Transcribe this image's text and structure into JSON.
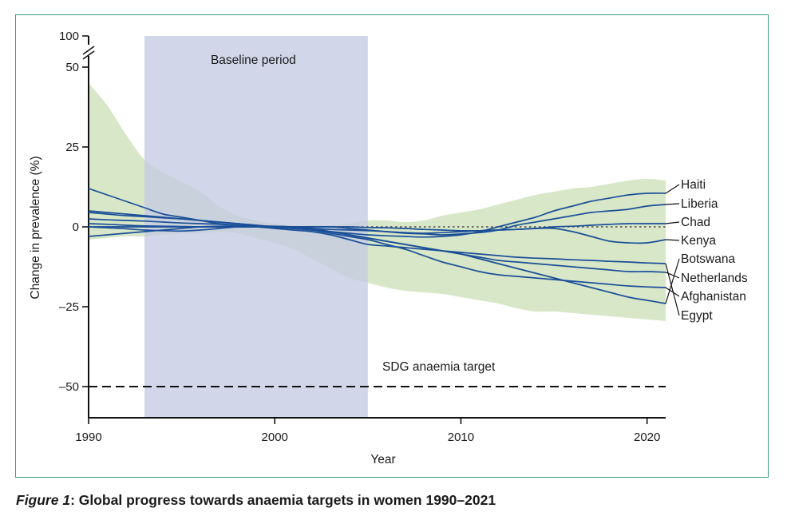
{
  "caption": {
    "figure_label": "Figure 1",
    "separator": ":",
    "title": " Global progress towards anaemia targets in women 1990–2021"
  },
  "colors": {
    "line": "#1a4f98",
    "band": "#d8e7c8",
    "baseline_shade": "#c4cbe3",
    "frame": "#3f9a82"
  },
  "chart_data": {
    "type": "line",
    "title": "Global progress towards anaemia targets in women 1990–2021",
    "xlabel": "Year",
    "ylabel": "Change in prevalence (%)",
    "xlim": [
      1990,
      2021
    ],
    "ylim": [
      -60,
      50
    ],
    "y_break_top_label": "100",
    "x_ticks": [
      1990,
      2000,
      2010,
      2020
    ],
    "x_tick_labels": [
      "1990",
      "2000",
      "2010",
      "2020"
    ],
    "y_ticks": [
      50,
      25,
      0,
      -25,
      -50
    ],
    "y_tick_labels": [
      "50",
      "25",
      "0",
      "–25",
      "–50"
    ],
    "baseline_period": {
      "label": "Baseline period",
      "start": 1993,
      "end": 2005
    },
    "target_line": {
      "label": "SDG anaemia target",
      "value": -50
    },
    "zero_reference": 0,
    "uncertainty_band": {
      "x": [
        1990,
        1991,
        1992,
        1993,
        1994,
        1995,
        1996,
        1997,
        1998,
        1999,
        2000,
        2001,
        2002,
        2003,
        2004,
        2005,
        2006,
        2007,
        2008,
        2009,
        2010,
        2011,
        2012,
        2013,
        2014,
        2015,
        2016,
        2017,
        2018,
        2019,
        2020,
        2021
      ],
      "upper": [
        45,
        38,
        29,
        21,
        17,
        14,
        11,
        6.5,
        3.5,
        2.0,
        1.0,
        0.5,
        0.5,
        0.5,
        1.0,
        2.0,
        2.0,
        1.5,
        2.0,
        3.5,
        4.5,
        5.5,
        7.0,
        8.5,
        10,
        11,
        12,
        12.5,
        13.5,
        14.5,
        15,
        14.5
      ],
      "lower": [
        -4,
        -3.5,
        -3,
        -3,
        -2.5,
        -2.0,
        -2.0,
        -1.5,
        -2.0,
        -3.5,
        -5,
        -7,
        -10,
        -13,
        -16,
        -17.5,
        -19,
        -20,
        -20.5,
        -21,
        -22,
        -23,
        -24,
        -25.5,
        -26.5,
        -26.5,
        -27,
        -27.5,
        -28,
        -28.5,
        -29,
        -29.5
      ]
    },
    "x": [
      1990,
      1991,
      1992,
      1993,
      1994,
      1995,
      1996,
      1997,
      1998,
      1999,
      2000,
      2001,
      2002,
      2003,
      2004,
      2005,
      2006,
      2007,
      2008,
      2009,
      2010,
      2011,
      2012,
      2013,
      2014,
      2015,
      2016,
      2017,
      2018,
      2019,
      2020,
      2021
    ],
    "series": [
      {
        "name": "Haiti",
        "values": [
          5,
          4.5,
          4,
          3.5,
          3,
          2.5,
          2,
          1.5,
          1,
          0.5,
          0,
          -0.5,
          -1,
          -1.5,
          -2,
          -2.5,
          -2.8,
          -3,
          -3.2,
          -3,
          -2.5,
          -1.5,
          0,
          1.5,
          3,
          5,
          6.5,
          8,
          9,
          10,
          10.5,
          10.5
        ]
      },
      {
        "name": "Liberia",
        "values": [
          0,
          0,
          0,
          0,
          0,
          0,
          0,
          0,
          0,
          0,
          0,
          0,
          0,
          0,
          -0.5,
          -1,
          -1.5,
          -2,
          -2.2,
          -2.5,
          -2.2,
          -1.8,
          -1,
          0.5,
          1.5,
          2.5,
          3.5,
          4.5,
          5,
          5.5,
          6.5,
          7
        ]
      },
      {
        "name": "Chad",
        "values": [
          4.5,
          4,
          3.5,
          3.2,
          2.8,
          2.5,
          2,
          1.5,
          1,
          0.5,
          0,
          -0.2,
          -0.5,
          -0.8,
          -1,
          -1.2,
          -1.5,
          -1.8,
          -2,
          -1.8,
          -1.5,
          -1.2,
          -1,
          -0.8,
          -0.5,
          0,
          0.2,
          0.5,
          0.8,
          1,
          1,
          1
        ]
      },
      {
        "name": "Kenya",
        "values": [
          2.5,
          2.2,
          2,
          1.8,
          1.5,
          1.2,
          1,
          0.8,
          0.5,
          0.3,
          0,
          0,
          0,
          0,
          0,
          -0.2,
          -0.3,
          -0.5,
          -0.8,
          -1,
          -1.2,
          -1.2,
          -1,
          -0.8,
          -0.5,
          -0.5,
          -1.5,
          -3,
          -4.5,
          -5,
          -5,
          -4
        ]
      },
      {
        "name": "Botswana",
        "values": [
          -3,
          -2.5,
          -2,
          -1.5,
          -1,
          -0.5,
          0,
          0.2,
          0.3,
          0.3,
          0.2,
          0,
          -0.5,
          -1.5,
          -2.5,
          -3.5,
          -4.5,
          -5.5,
          -6.5,
          -7.5,
          -8.5,
          -10,
          -11.5,
          -13,
          -14.5,
          -16,
          -17.5,
          -19,
          -20.5,
          -22,
          -23,
          -24
        ]
      },
      {
        "name": "Netherlands",
        "values": [
          1,
          0.8,
          0.5,
          0.3,
          0.2,
          0.1,
          0,
          0,
          0,
          0,
          0,
          -0.3,
          -0.8,
          -1.5,
          -2.5,
          -3.5,
          -4.5,
          -5.5,
          -6.5,
          -7.5,
          -8.5,
          -9.5,
          -10.5,
          -11,
          -11.5,
          -12,
          -12.5,
          -13,
          -13.5,
          -14,
          -14,
          -14.2
        ]
      },
      {
        "name": "Afghanistan",
        "values": [
          12,
          10,
          8,
          6,
          4,
          3,
          2,
          1,
          0.5,
          0,
          -0.2,
          -0.5,
          -1,
          -2,
          -3,
          -4,
          -5.5,
          -7,
          -9,
          -11,
          -12.5,
          -14,
          -15,
          -15.5,
          -16,
          -16.5,
          -17,
          -17.5,
          -18,
          -18.5,
          -18.8,
          -19
        ]
      },
      {
        "name": "Egypt",
        "values": [
          0,
          -0.3,
          -0.6,
          -1,
          -1.2,
          -1.3,
          -1,
          -0.5,
          0,
          0,
          -0.5,
          -1,
          -1.5,
          -2.5,
          -4,
          -5.5,
          -6,
          -6.5,
          -7,
          -7.5,
          -8,
          -8.5,
          -9,
          -9.5,
          -9.8,
          -10,
          -10.3,
          -10.5,
          -10.8,
          -11,
          -11.3,
          -11.5
        ]
      }
    ]
  }
}
